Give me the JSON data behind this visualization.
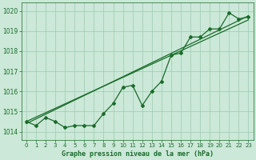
{
  "title": "Graphe pression niveau de la mer (hPa)",
  "background_color": "#cce8d8",
  "grid_color": "#99ccb0",
  "line_color": "#1a6b2a",
  "xlim": [
    -0.5,
    23.5
  ],
  "ylim": [
    1013.6,
    1020.4
  ],
  "yticks": [
    1014,
    1015,
    1016,
    1017,
    1018,
    1019,
    1020
  ],
  "xticks": [
    0,
    1,
    2,
    3,
    4,
    5,
    6,
    7,
    8,
    9,
    10,
    11,
    12,
    13,
    14,
    15,
    16,
    17,
    18,
    19,
    20,
    21,
    22,
    23
  ],
  "hours": [
    0,
    1,
    2,
    3,
    4,
    5,
    6,
    7,
    8,
    9,
    10,
    11,
    12,
    13,
    14,
    15,
    16,
    17,
    18,
    19,
    20,
    21,
    22,
    23
  ],
  "pressure_main": [
    1014.5,
    1014.3,
    1014.7,
    1014.5,
    1014.2,
    1014.3,
    1014.3,
    1014.3,
    1014.9,
    1015.4,
    1016.2,
    1016.3,
    1015.3,
    1016.0,
    1016.5,
    1017.8,
    1017.9,
    1018.7,
    1018.7,
    1019.1,
    1019.1,
    1019.9,
    1019.6,
    1019.7
  ],
  "trend1_x": [
    0,
    23
  ],
  "trend1_y": [
    1014.5,
    1019.55
  ],
  "trend2_x": [
    0,
    23
  ],
  "trend2_y": [
    1014.4,
    1019.75
  ],
  "ylabel_fontsize": 5.5,
  "xlabel_fontsize": 6.0,
  "tick_labelsize": 5.0
}
